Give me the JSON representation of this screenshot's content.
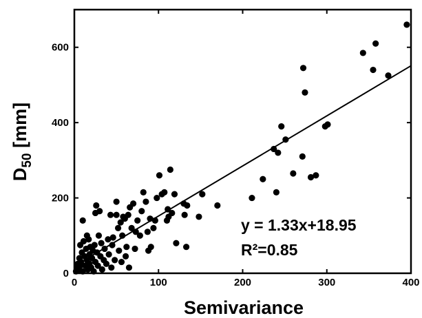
{
  "chart_data": {
    "type": "scatter",
    "title": "",
    "xlabel": "Semivariance",
    "ylabel_main": "D",
    "ylabel_sub": "50",
    "ylabel_unit": " [mm]",
    "xlim": [
      0,
      400
    ],
    "ylim": [
      0,
      700
    ],
    "x_ticks": [
      0,
      100,
      200,
      300,
      400
    ],
    "y_ticks": [
      0,
      200,
      400,
      600
    ],
    "grid": false,
    "marker_color": "#000000",
    "fit_line": {
      "slope": 1.33,
      "intercept": 18.95,
      "x_range": [
        0,
        400
      ],
      "color": "#000000"
    },
    "annotations": [
      "y = 1.33x+18.95",
      "R²=0.85"
    ],
    "points": [
      [
        2,
        5
      ],
      [
        3,
        15
      ],
      [
        4,
        25
      ],
      [
        5,
        10
      ],
      [
        6,
        40
      ],
      [
        7,
        20
      ],
      [
        7,
        75
      ],
      [
        8,
        30
      ],
      [
        9,
        55
      ],
      [
        10,
        5
      ],
      [
        10,
        140
      ],
      [
        11,
        85
      ],
      [
        12,
        45
      ],
      [
        13,
        20
      ],
      [
        14,
        65
      ],
      [
        15,
        100
      ],
      [
        15,
        35
      ],
      [
        16,
        10
      ],
      [
        17,
        90
      ],
      [
        18,
        50
      ],
      [
        18,
        25
      ],
      [
        19,
        70
      ],
      [
        20,
        15
      ],
      [
        21,
        40
      ],
      [
        22,
        60
      ],
      [
        23,
        5
      ],
      [
        24,
        75
      ],
      [
        25,
        30
      ],
      [
        25,
        160
      ],
      [
        26,
        180
      ],
      [
        27,
        55
      ],
      [
        28,
        20
      ],
      [
        29,
        100
      ],
      [
        30,
        165
      ],
      [
        31,
        45
      ],
      [
        32,
        80
      ],
      [
        33,
        10
      ],
      [
        35,
        35
      ],
      [
        36,
        65
      ],
      [
        38,
        25
      ],
      [
        40,
        90
      ],
      [
        41,
        50
      ],
      [
        43,
        155
      ],
      [
        44,
        15
      ],
      [
        45,
        75
      ],
      [
        46,
        95
      ],
      [
        48,
        35
      ],
      [
        50,
        155
      ],
      [
        50,
        190
      ],
      [
        52,
        120
      ],
      [
        53,
        60
      ],
      [
        55,
        135
      ],
      [
        56,
        30
      ],
      [
        57,
        100
      ],
      [
        58,
        150
      ],
      [
        60,
        145
      ],
      [
        61,
        45
      ],
      [
        62,
        70
      ],
      [
        64,
        155
      ],
      [
        65,
        15
      ],
      [
        66,
        175
      ],
      [
        68,
        120
      ],
      [
        70,
        185
      ],
      [
        72,
        65
      ],
      [
        73,
        110
      ],
      [
        75,
        140
      ],
      [
        78,
        100
      ],
      [
        80,
        165
      ],
      [
        82,
        215
      ],
      [
        85,
        190
      ],
      [
        87,
        110
      ],
      [
        88,
        60
      ],
      [
        90,
        145
      ],
      [
        91,
        70
      ],
      [
        94,
        120
      ],
      [
        96,
        140
      ],
      [
        98,
        200
      ],
      [
        101,
        260
      ],
      [
        104,
        210
      ],
      [
        107,
        215
      ],
      [
        110,
        140
      ],
      [
        111,
        170
      ],
      [
        112,
        150
      ],
      [
        114,
        275
      ],
      [
        116,
        160
      ],
      [
        119,
        210
      ],
      [
        121,
        80
      ],
      [
        130,
        185
      ],
      [
        131,
        155
      ],
      [
        133,
        70
      ],
      [
        134,
        180
      ],
      [
        148,
        150
      ],
      [
        152,
        210
      ],
      [
        170,
        180
      ],
      [
        211,
        200
      ],
      [
        224,
        250
      ],
      [
        237,
        330
      ],
      [
        240,
        215
      ],
      [
        242,
        320
      ],
      [
        246,
        390
      ],
      [
        251,
        355
      ],
      [
        260,
        265
      ],
      [
        271,
        310
      ],
      [
        272,
        545
      ],
      [
        274,
        480
      ],
      [
        281,
        255
      ],
      [
        287,
        260
      ],
      [
        298,
        390
      ],
      [
        301,
        395
      ],
      [
        343,
        585
      ],
      [
        355,
        540
      ],
      [
        358,
        610
      ],
      [
        373,
        525
      ],
      [
        395,
        660
      ]
    ]
  }
}
